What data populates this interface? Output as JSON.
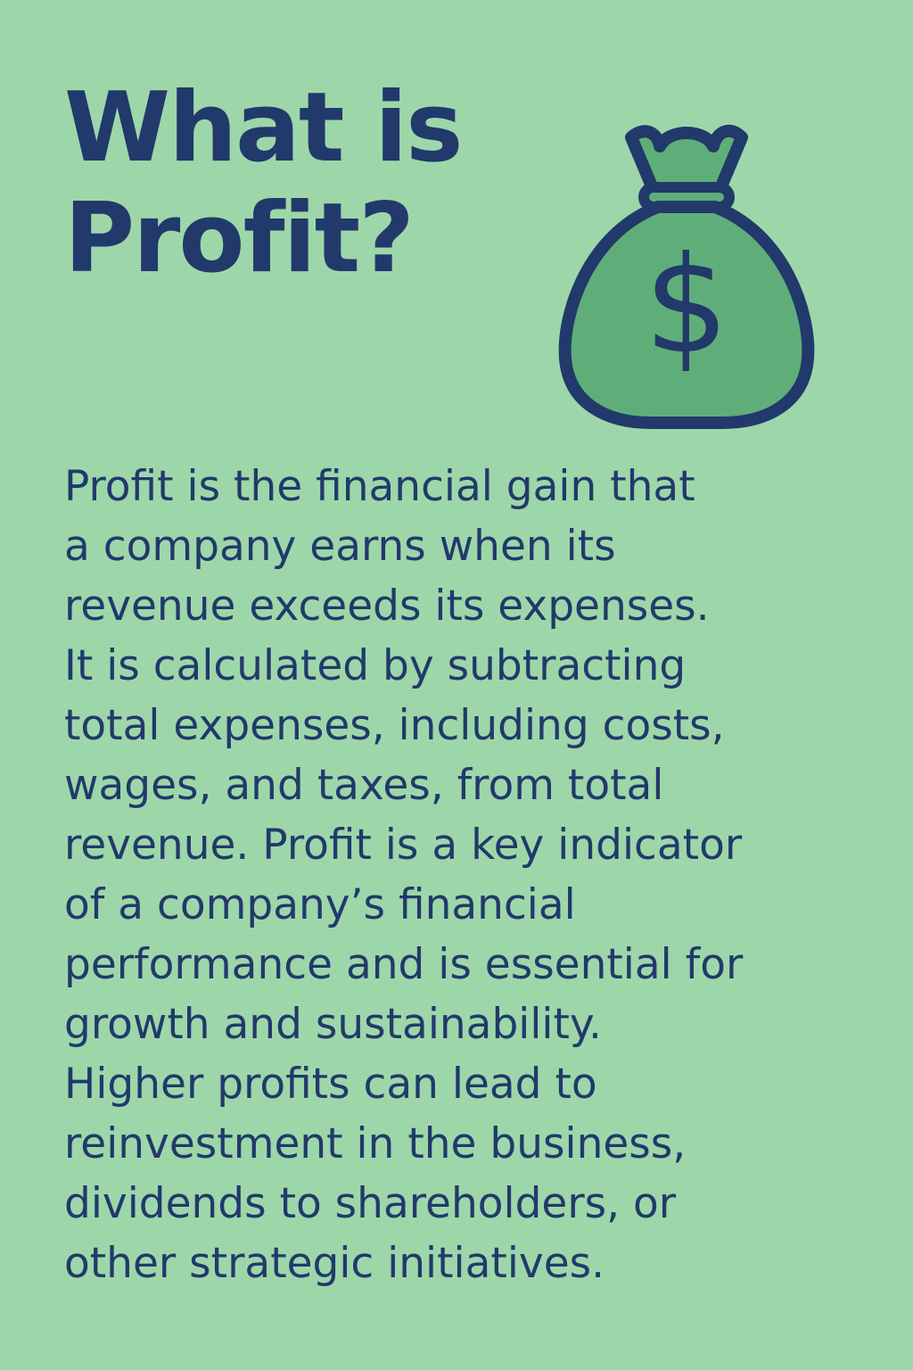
{
  "title": {
    "line1": "What is",
    "line2": "Profit?"
  },
  "icon": {
    "name": "money-bag-dollar-icon",
    "glyph": "$",
    "fill": "#5fae7a",
    "stroke": "#22396b"
  },
  "colors": {
    "background": "#9dd7a9",
    "text": "#22396b"
  },
  "body": {
    "lines": [
      "Profit is the financial gain that",
      "a company earns when its",
      "revenue exceeds its expenses.",
      "It is calculated by subtracting",
      "total expenses, including costs,",
      "wages, and taxes, from total",
      "revenue. Profit is a key indicator",
      "of a company’s financial",
      "performance and is essential for",
      "growth and sustainability.",
      "Higher profits can lead to",
      "reinvestment in the business,",
      "dividends to shareholders, or",
      "other strategic initiatives."
    ]
  }
}
